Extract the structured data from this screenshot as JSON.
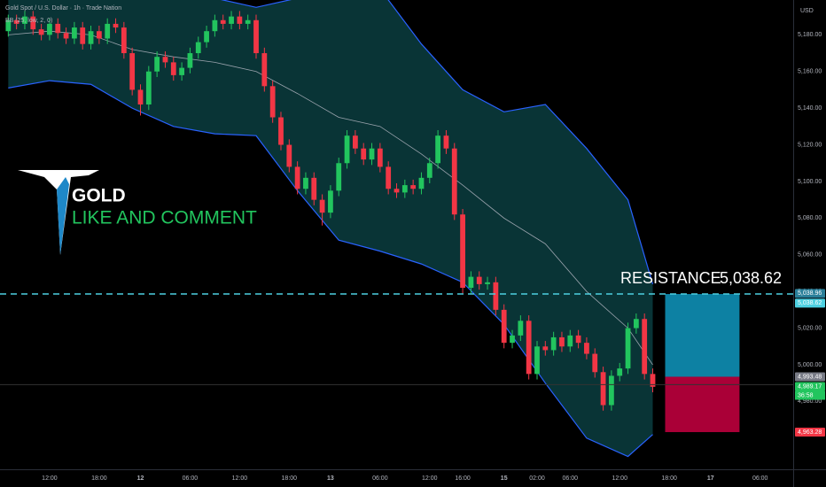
{
  "chart_data": {
    "type": "candlestick",
    "title": "Gold Spot / U.S. Dollar · 1h · Trade Nation",
    "indicator": "BB (25, low, 2, 0)",
    "currency": "USD",
    "up_color": "#22c55e",
    "down_color": "#f23645",
    "xlim": [
      -1,
      95
    ],
    "ylim": [
      4943,
      5199
    ],
    "xticks": [
      {
        "value": 5,
        "label": "12:00"
      },
      {
        "value": 11,
        "label": "18:00"
      },
      {
        "value": 16,
        "label": "12"
      },
      {
        "value": 22,
        "label": "06:00"
      },
      {
        "value": 28,
        "label": "12:00"
      },
      {
        "value": 34,
        "label": "18:00"
      },
      {
        "value": 39,
        "label": "13"
      },
      {
        "value": 45,
        "label": "06:00"
      },
      {
        "value": 51,
        "label": "12:00"
      },
      {
        "value": 55,
        "label": "16:00"
      },
      {
        "value": 60,
        "label": "15"
      },
      {
        "value": 64,
        "label": "02:00"
      },
      {
        "value": 68,
        "label": "06:00"
      },
      {
        "value": 74,
        "label": "12:00"
      },
      {
        "value": 80,
        "label": "18:00"
      },
      {
        "value": 85,
        "label": "17"
      },
      {
        "value": 91,
        "label": "06:00"
      }
    ],
    "yticks": [
      {
        "value": 4980,
        "label": "4,980.00"
      },
      {
        "value": 5000,
        "label": "5,000.00"
      },
      {
        "value": 5020,
        "label": "5,020.00"
      },
      {
        "value": 5040,
        "label": "5,040.00"
      },
      {
        "value": 5060,
        "label": "5,060.00"
      },
      {
        "value": 5080,
        "label": "5,080.00"
      },
      {
        "value": 5100,
        "label": "5,100.00"
      },
      {
        "value": 5120,
        "label": "5,120.00"
      },
      {
        "value": 5140,
        "label": "5,140.00"
      },
      {
        "value": 5160,
        "label": "5,160.00"
      },
      {
        "value": 5180,
        "label": "5,180.00"
      }
    ],
    "ohlc": [
      [
        5182,
        5191,
        5179,
        5188
      ],
      [
        5188,
        5191,
        5183,
        5186
      ],
      [
        5186,
        5193,
        5183,
        5190
      ],
      [
        5190,
        5193,
        5180,
        5183
      ],
      [
        5183,
        5186,
        5177,
        5180
      ],
      [
        5180,
        5189,
        5177,
        5186
      ],
      [
        5186,
        5189,
        5178,
        5181
      ],
      [
        5181,
        5184,
        5175,
        5178
      ],
      [
        5178,
        5187,
        5175,
        5184
      ],
      [
        5184,
        5187,
        5172,
        5175
      ],
      [
        5175,
        5185,
        5172,
        5182
      ],
      [
        5182,
        5185,
        5175,
        5178
      ],
      [
        5178,
        5189,
        5175,
        5186
      ],
      [
        5186,
        5189,
        5181,
        5184
      ],
      [
        5184,
        5187,
        5167,
        5170
      ],
      [
        5170,
        5173,
        5147,
        5150
      ],
      [
        5150,
        5153,
        5136,
        5142
      ],
      [
        5142,
        5163,
        5139,
        5160
      ],
      [
        5160,
        5171,
        5157,
        5168
      ],
      [
        5168,
        5171,
        5162,
        5165
      ],
      [
        5165,
        5168,
        5155,
        5158
      ],
      [
        5158,
        5165,
        5155,
        5162
      ],
      [
        5162,
        5173,
        5159,
        5170
      ],
      [
        5170,
        5179,
        5167,
        5176
      ],
      [
        5176,
        5185,
        5173,
        5182
      ],
      [
        5182,
        5191,
        5179,
        5188
      ],
      [
        5188,
        5191,
        5183,
        5186
      ],
      [
        5186,
        5193,
        5183,
        5190
      ],
      [
        5190,
        5193,
        5183,
        5186
      ],
      [
        5186,
        5191,
        5183,
        5188
      ],
      [
        5188,
        5191,
        5167,
        5170
      ],
      [
        5170,
        5173,
        5149,
        5152
      ],
      [
        5152,
        5155,
        5132,
        5135
      ],
      [
        5135,
        5138,
        5117,
        5120
      ],
      [
        5120,
        5123,
        5105,
        5108
      ],
      [
        5108,
        5111,
        5093,
        5096
      ],
      [
        5096,
        5105,
        5093,
        5102
      ],
      [
        5102,
        5105,
        5087,
        5090
      ],
      [
        5090,
        5093,
        5076,
        5083
      ],
      [
        5083,
        5098,
        5080,
        5095
      ],
      [
        5095,
        5113,
        5092,
        5110
      ],
      [
        5110,
        5128,
        5107,
        5125
      ],
      [
        5125,
        5128,
        5115,
        5118
      ],
      [
        5118,
        5121,
        5109,
        5112
      ],
      [
        5112,
        5121,
        5109,
        5118
      ],
      [
        5118,
        5121,
        5105,
        5108
      ],
      [
        5108,
        5111,
        5093,
        5096
      ],
      [
        5096,
        5099,
        5091,
        5094
      ],
      [
        5094,
        5101,
        5091,
        5098
      ],
      [
        5098,
        5101,
        5093,
        5096
      ],
      [
        5096,
        5105,
        5093,
        5102
      ],
      [
        5102,
        5113,
        5099,
        5110
      ],
      [
        5110,
        5128,
        5107,
        5125
      ],
      [
        5125,
        5128,
        5115,
        5118
      ],
      [
        5118,
        5121,
        5079,
        5082
      ],
      [
        5082,
        5085,
        5039,
        5042
      ],
      [
        5042,
        5051,
        5039,
        5048
      ],
      [
        5048,
        5051,
        5041,
        5044
      ],
      [
        5044,
        5048,
        5041,
        5045
      ],
      [
        5045,
        5048,
        5027,
        5030
      ],
      [
        5030,
        5033,
        5009,
        5012
      ],
      [
        5012,
        5019,
        5009,
        5016
      ],
      [
        5016,
        5027,
        5013,
        5024
      ],
      [
        5024,
        5027,
        4992,
        4995
      ],
      [
        4995,
        5013,
        4992,
        5010
      ],
      [
        5010,
        5013,
        5005,
        5008
      ],
      [
        5008,
        5018,
        5005,
        5015
      ],
      [
        5015,
        5018,
        5007,
        5010
      ],
      [
        5010,
        5019,
        5007,
        5016
      ],
      [
        5016,
        5019,
        5009,
        5012
      ],
      [
        5012,
        5015,
        5003,
        5006
      ],
      [
        5006,
        5009,
        4993,
        4996
      ],
      [
        4996,
        4999,
        4975,
        4978
      ],
      [
        4978,
        4997,
        4975,
        4994
      ],
      [
        4994,
        5001,
        4991,
        4998
      ],
      [
        4998,
        5023,
        4995,
        5020
      ],
      [
        5020,
        5028,
        5017,
        5025
      ],
      [
        5025,
        5028,
        4992,
        4995
      ],
      [
        4995,
        4998,
        4985,
        4988
      ]
    ],
    "bands": {
      "x": [
        0,
        5,
        10,
        15,
        20,
        25,
        30,
        35,
        40,
        45,
        50,
        55,
        60,
        65,
        70,
        75,
        78
      ],
      "upper": [
        5205,
        5205,
        5205,
        5205,
        5205,
        5200,
        5195,
        5200,
        5205,
        5205,
        5175,
        5150,
        5138,
        5142,
        5118,
        5090,
        5044
      ],
      "basis": [
        5180,
        5182,
        5180,
        5172,
        5168,
        5165,
        5160,
        5148,
        5135,
        5130,
        5115,
        5098,
        5080,
        5066,
        5040,
        5020,
        5000
      ],
      "lower": [
        5151,
        5155,
        5153,
        5140,
        5130,
        5126,
        5125,
        5095,
        5068,
        5062,
        5055,
        5045,
        5022,
        4990,
        4960,
        4950,
        4962
      ]
    },
    "resistance": {
      "label": "RESISTANCE",
      "value": 5038.62,
      "value_label": "5,038.62"
    },
    "price_labels": [
      {
        "value": 5038.96,
        "label": "5,038.96",
        "color": "#2a7f99"
      },
      {
        "value": 5038.62,
        "label": "5,038.62",
        "color": "#4dd0e1"
      },
      {
        "value": 4993.48,
        "label": "4,993.48",
        "color": "#787b86"
      },
      {
        "value": 4989.17,
        "label": "4,989.17",
        "color": "#22c55e"
      },
      {
        "value": 4963.28,
        "label": "4,963.28",
        "color": "#f23645"
      }
    ],
    "countdown": "36:58",
    "position": {
      "x": [
        79.5,
        88.5
      ],
      "target": 5038.62,
      "entry": 4993.48,
      "stop": 4963.28
    },
    "watermark": {
      "brand": "GOLD",
      "text": "LIKE AND COMMENT"
    }
  }
}
